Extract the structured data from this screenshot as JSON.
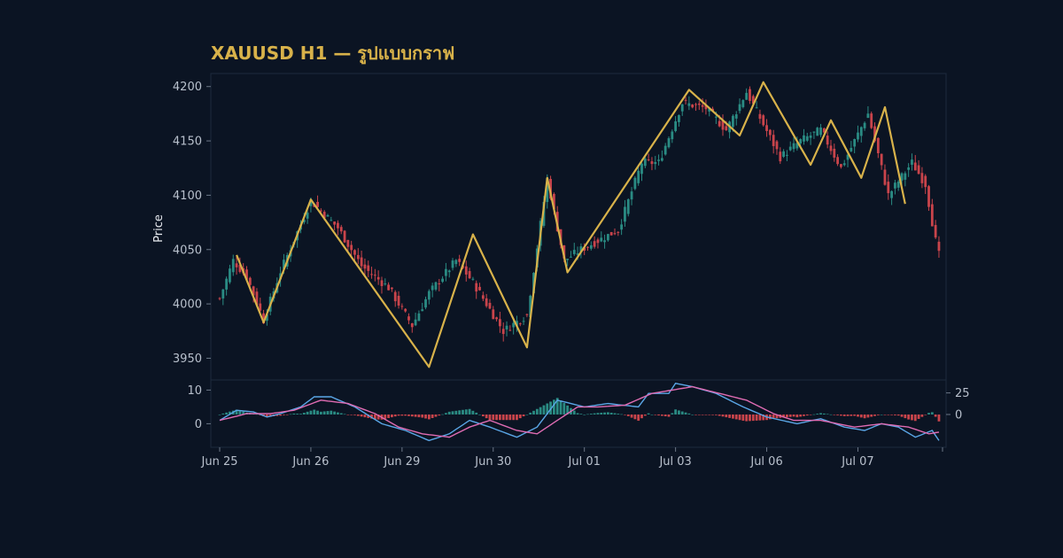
{
  "colors": {
    "background": "#0b1423",
    "panel_border": "#1c2a3d",
    "up": "#2a8b83",
    "down": "#c9444b",
    "zigzag": "#d8b24a",
    "macd": "#5aa6e6",
    "signal": "#e06cb3",
    "title": "#d8b24a",
    "tick_text": "#b8c0cc"
  },
  "chart_data": [
    {
      "type": "candlestick",
      "title": "XAUUSD H1 — รูปแบบกราฟ",
      "ylabel": "Price",
      "ylim": [
        3930,
        4212
      ],
      "yticks": [
        3950,
        4000,
        4050,
        4100,
        4150,
        4200
      ],
      "x_tick_labels": [
        "Jun 25",
        "Jun 26",
        "Jun 29",
        "Jun 30",
        "Jul 01",
        "Jul 03",
        "Jul 06",
        "Jul 07"
      ],
      "x_tick_index": [
        0,
        27,
        54,
        81,
        108,
        135,
        162,
        189
      ],
      "close_anchors": [
        [
          0,
          4005
        ],
        [
          4,
          4040
        ],
        [
          8,
          4025
        ],
        [
          13,
          3985
        ],
        [
          18,
          4030
        ],
        [
          27,
          4095
        ],
        [
          35,
          4070
        ],
        [
          42,
          4035
        ],
        [
          50,
          4015
        ],
        [
          57,
          3980
        ],
        [
          62,
          4010
        ],
        [
          70,
          4040
        ],
        [
          75,
          4020
        ],
        [
          84,
          3975
        ],
        [
          91,
          3990
        ],
        [
          97,
          4115
        ],
        [
          102,
          4040
        ],
        [
          107,
          4050
        ],
        [
          118,
          4068
        ],
        [
          125,
          4130
        ],
        [
          130,
          4130
        ],
        [
          137,
          4185
        ],
        [
          144,
          4180
        ],
        [
          150,
          4160
        ],
        [
          156,
          4195
        ],
        [
          166,
          4135
        ],
        [
          172,
          4150
        ],
        [
          178,
          4160
        ],
        [
          184,
          4125
        ],
        [
          192,
          4175
        ],
        [
          198,
          4100
        ],
        [
          205,
          4130
        ],
        [
          209,
          4110
        ],
        [
          212,
          4058
        ],
        [
          213,
          4045
        ]
      ],
      "zigzag": [
        [
          5,
          4045
        ],
        [
          13,
          3983
        ],
        [
          27,
          4096
        ],
        [
          62,
          3942
        ],
        [
          75,
          4064
        ],
        [
          91,
          3960
        ],
        [
          97,
          4116
        ],
        [
          103,
          4029
        ],
        [
          139,
          4197
        ],
        [
          154,
          4155
        ],
        [
          161,
          4204
        ],
        [
          175,
          4128
        ],
        [
          181,
          4169
        ],
        [
          190,
          4116
        ],
        [
          197,
          4181
        ],
        [
          203,
          4092
        ]
      ],
      "candle_count": 214
    },
    {
      "type": "macd",
      "left_ylim": [
        -7,
        13
      ],
      "left_yticks": [
        0,
        10
      ],
      "right_ylim": [
        -38,
        40
      ],
      "right_yticks": [
        0,
        25
      ],
      "series": [
        {
          "line": "macd",
          "anchors": [
            [
              0,
              1
            ],
            [
              5,
              4
            ],
            [
              10,
              3.5
            ],
            [
              14,
              2
            ],
            [
              18,
              3
            ],
            [
              24,
              5
            ],
            [
              28,
              8
            ],
            [
              33,
              8
            ],
            [
              40,
              5
            ],
            [
              48,
              0
            ],
            [
              55,
              -2
            ],
            [
              62,
              -5
            ],
            [
              68,
              -3
            ],
            [
              74,
              1
            ],
            [
              80,
              -1
            ],
            [
              88,
              -4
            ],
            [
              94,
              -1
            ],
            [
              100,
              7
            ],
            [
              108,
              5
            ],
            [
              115,
              6
            ],
            [
              124,
              5
            ],
            [
              127,
              9
            ],
            [
              133,
              9
            ],
            [
              135,
              12
            ],
            [
              140,
              11
            ],
            [
              147,
              9
            ],
            [
              155,
              5
            ],
            [
              162,
              2
            ],
            [
              171,
              0
            ],
            [
              178,
              1.5
            ],
            [
              185,
              -1
            ],
            [
              191,
              -2
            ],
            [
              196,
              0
            ],
            [
              201,
              -1
            ],
            [
              206,
              -4
            ],
            [
              211,
              -2
            ],
            [
              213,
              -5
            ]
          ]
        },
        {
          "line": "signal",
          "anchors": [
            [
              0,
              1
            ],
            [
              8,
              3
            ],
            [
              15,
              3
            ],
            [
              22,
              4
            ],
            [
              30,
              7
            ],
            [
              38,
              6
            ],
            [
              46,
              3
            ],
            [
              53,
              -1
            ],
            [
              60,
              -3
            ],
            [
              68,
              -4
            ],
            [
              74,
              -1
            ],
            [
              80,
              1
            ],
            [
              88,
              -2
            ],
            [
              94,
              -3
            ],
            [
              100,
              1
            ],
            [
              106,
              5
            ],
            [
              112,
              5
            ],
            [
              120,
              5.5
            ],
            [
              128,
              9
            ],
            [
              140,
              11
            ],
            [
              148,
              9
            ],
            [
              156,
              7
            ],
            [
              164,
              3
            ],
            [
              170,
              1
            ],
            [
              178,
              1
            ],
            [
              188,
              -1
            ],
            [
              196,
              0
            ],
            [
              204,
              -1
            ],
            [
              210,
              -3
            ],
            [
              213,
              -2.5
            ]
          ]
        }
      ]
    }
  ]
}
